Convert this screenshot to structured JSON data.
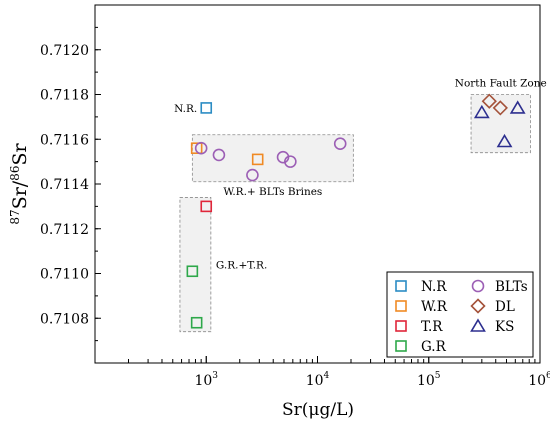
{
  "chart_data": {
    "type": "scatter",
    "xlabel": "Sr(μg/L)",
    "ylabel": {
      "pre1": "87",
      "mid": "Sr/",
      "pre2": "86",
      "post": "Sr"
    },
    "x_scale": "log",
    "xlim": [
      100,
      1000000
    ],
    "x_ticks": [
      {
        "value": 1000,
        "base": "10",
        "exp": "3"
      },
      {
        "value": 10000,
        "base": "10",
        "exp": "4"
      },
      {
        "value": 100000,
        "base": "10",
        "exp": "5"
      },
      {
        "value": 1000000,
        "base": "10",
        "exp": "6"
      }
    ],
    "ylim": [
      0.7106,
      0.7122
    ],
    "y_ticks": [
      "0.7108",
      "0.7110",
      "0.7112",
      "0.7114",
      "0.7116",
      "0.7118",
      "0.7120"
    ],
    "grid": false,
    "legend_position": "bottom-right",
    "series": [
      {
        "name": "N.R",
        "marker": "square",
        "color": "#2b8cc4",
        "points": [
          [
            1000,
            0.71174
          ]
        ]
      },
      {
        "name": "W.R",
        "marker": "square",
        "color": "#f08a24",
        "points": [
          [
            820,
            0.71156
          ],
          [
            2900,
            0.71151
          ]
        ]
      },
      {
        "name": "T.R",
        "marker": "square",
        "color": "#e0263a",
        "points": [
          [
            1000,
            0.7113
          ]
        ]
      },
      {
        "name": "G.R",
        "marker": "square",
        "color": "#2ea84a",
        "points": [
          [
            750,
            0.71101
          ],
          [
            820,
            0.71078
          ]
        ]
      },
      {
        "name": "BLTs",
        "marker": "circle",
        "color": "#9c5fb5",
        "points": [
          [
            900,
            0.71156
          ],
          [
            1300,
            0.71153
          ],
          [
            2600,
            0.71144
          ],
          [
            4900,
            0.71152
          ],
          [
            5700,
            0.7115
          ],
          [
            16000,
            0.71158
          ]
        ]
      },
      {
        "name": "DL",
        "marker": "diamond",
        "color": "#a4523a",
        "points": [
          [
            350000,
            0.71177
          ],
          [
            440000,
            0.71174
          ]
        ]
      },
      {
        "name": "KS",
        "marker": "triangle",
        "color": "#2d2f8f",
        "points": [
          [
            300000,
            0.71172
          ],
          [
            480000,
            0.71159
          ],
          [
            630000,
            0.71174
          ]
        ]
      }
    ],
    "regions": [
      {
        "label": "W.R.+ BLTs Brines",
        "x": [
          750,
          21000
        ],
        "y": [
          0.71141,
          0.71162
        ],
        "label_pos": "below"
      },
      {
        "label": "G.R.+T.R.",
        "x": [
          580,
          1100
        ],
        "y": [
          0.71074,
          0.71134
        ],
        "label_pos": "right"
      },
      {
        "label": "North Fault Zone",
        "x": [
          240000,
          820000
        ],
        "y": [
          0.71154,
          0.7118
        ],
        "label_pos": "above"
      }
    ],
    "annotations": [
      {
        "text": "N.R.",
        "near_series": "N.R"
      }
    ]
  }
}
